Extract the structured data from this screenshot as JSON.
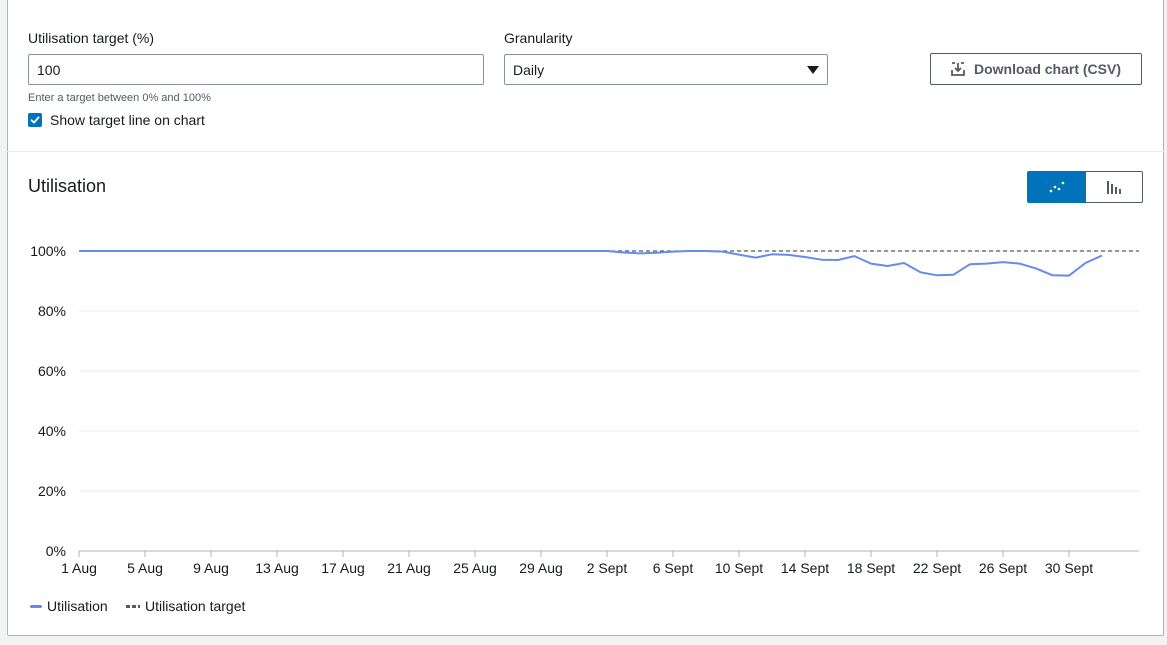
{
  "form": {
    "target_label": "Utilisation target (%)",
    "target_value": "100",
    "target_hint": "Enter a target between 0% and 100%",
    "show_target_label": "Show target line on chart",
    "granularity_label": "Granularity",
    "granularity_value": "Daily",
    "download_label": "Download chart (CSV)"
  },
  "section": {
    "title": "Utilisation"
  },
  "colors": {
    "series": "#688ae8",
    "target": "#545b64",
    "accent": "#0073bb"
  },
  "chart_data": {
    "type": "line",
    "title": "Utilisation",
    "ylim": [
      0,
      100
    ],
    "ytick_labels": [
      "0%",
      "20%",
      "40%",
      "60%",
      "80%",
      "100%"
    ],
    "ytick_values": [
      0,
      20,
      40,
      60,
      80,
      100
    ],
    "xtick_labels": [
      "1 Aug",
      "5 Aug",
      "9 Aug",
      "13 Aug",
      "17 Aug",
      "21 Aug",
      "25 Aug",
      "29 Aug",
      "2 Sept",
      "6 Sept",
      "10 Sept",
      "14 Sept",
      "18 Sept",
      "22 Sept",
      "26 Sept",
      "30 Sept"
    ],
    "x_start": "1 Aug",
    "x_end": "1 Oct",
    "grid": true,
    "legend_position": "bottom-left",
    "series": [
      {
        "name": "Utilisation",
        "values": [
          100,
          100,
          100,
          100,
          100,
          100,
          100,
          100,
          100,
          100,
          100,
          100,
          100,
          100,
          100,
          100,
          100,
          100,
          100,
          100,
          100,
          100,
          100,
          100,
          100,
          100,
          100,
          100,
          100,
          100,
          100,
          100,
          100,
          99.5,
          99.2,
          99.4,
          99.8,
          100,
          100,
          99.8,
          98.8,
          97.8,
          98.9,
          98.7,
          98.0,
          97.1,
          97.0,
          98.3,
          95.8,
          95.0,
          96.0,
          92.9,
          91.9,
          92.1,
          95.6,
          95.8,
          96.3,
          95.8,
          94.2,
          91.9,
          91.8,
          96.0,
          98.5
        ]
      }
    ],
    "target": {
      "name": "Utilisation target",
      "value": 100
    }
  }
}
